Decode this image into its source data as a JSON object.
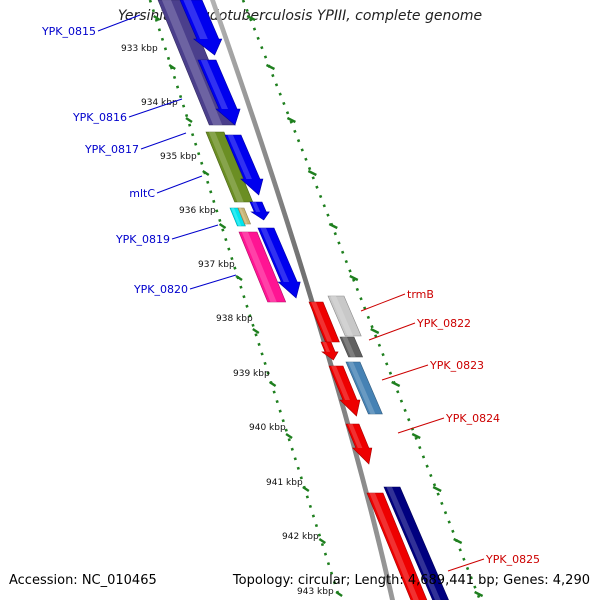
{
  "title": "Yersinia pseudotuberculosis YPIII, complete genome",
  "footer": {
    "accession": "Accession: NC_010465",
    "topology": "Topology: circular; Length: 4,689,441 bp; Genes: 4,290"
  },
  "colors": {
    "tick": "#1e7f1e",
    "backbone": "#8a8a8a",
    "left_label": "#0000cc",
    "right_label": "#cc0000"
  },
  "ruler_ticks": [
    "933 kbp",
    "934 kbp",
    "935 kbp",
    "936 kbp",
    "937 kbp",
    "938 kbp",
    "939 kbp",
    "940 kbp",
    "941 kbp",
    "942 kbp",
    "943 kbp"
  ],
  "genes": [
    {
      "name": "YPK_0815",
      "label_color": "#0000cc",
      "color": "#4b3f8c"
    },
    {
      "name": "YPK_0816",
      "label_color": "#0000cc",
      "color": "#0000ee"
    },
    {
      "name": "YPK_0817",
      "label_color": "#0000cc",
      "color": "#6b8e23"
    },
    {
      "name": "mltC",
      "label_color": "#0000cc",
      "color": "#0000ee"
    },
    {
      "name": "YPK_0819",
      "label_color": "#0000cc",
      "color": "#00e5ee"
    },
    {
      "name": "YPK_0820",
      "label_color": "#0000cc",
      "color": "#ff1493"
    },
    {
      "name": "trmB",
      "label_color": "#cc0000",
      "color": "#c8c8c8"
    },
    {
      "name": "YPK_0822",
      "label_color": "#cc0000",
      "color": "#ee0000"
    },
    {
      "name": "YPK_0823",
      "label_color": "#cc0000",
      "color": "#4682b4"
    },
    {
      "name": "YPK_0824",
      "label_color": "#cc0000",
      "color": "#ee0000"
    },
    {
      "name": "YPK_0825",
      "label_color": "#cc0000",
      "color": "#00007f"
    }
  ]
}
